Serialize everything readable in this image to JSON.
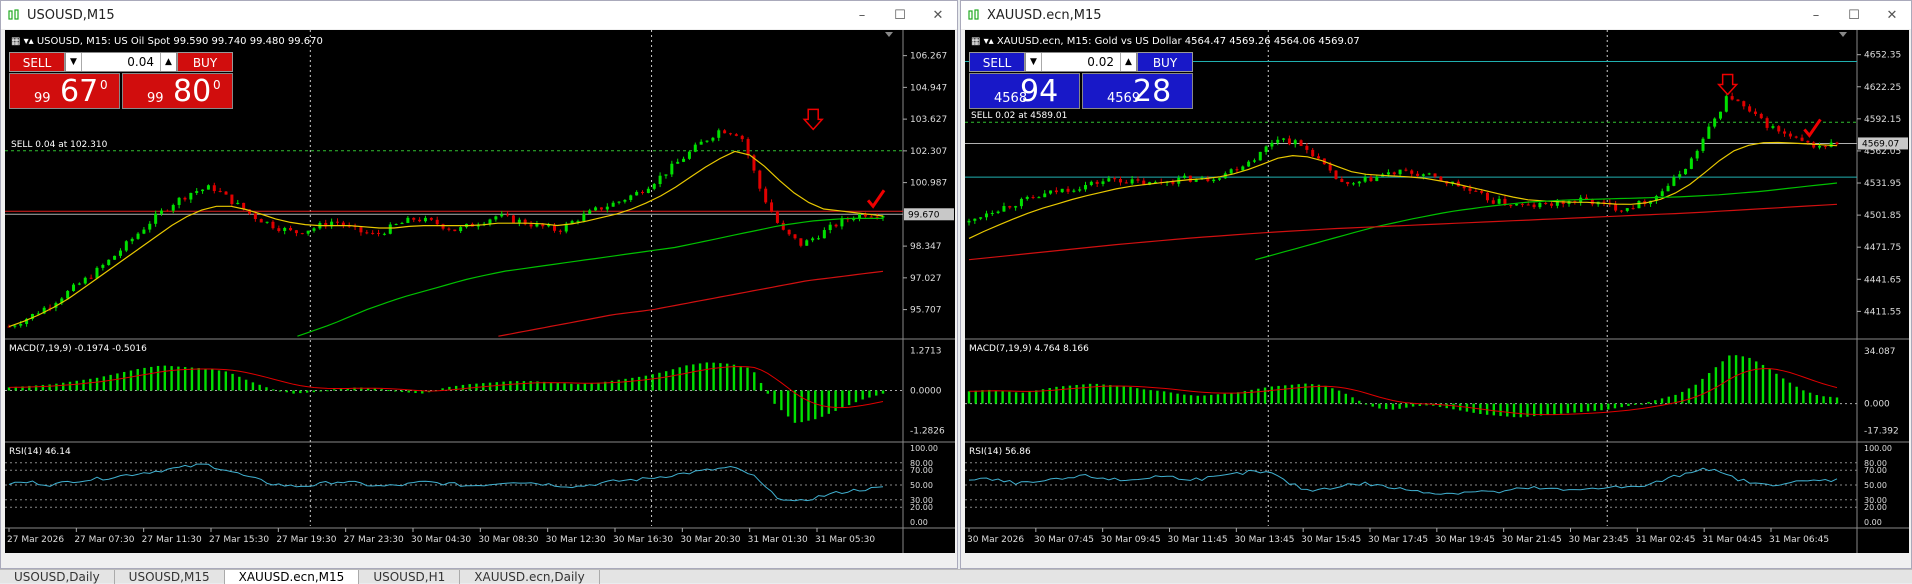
{
  "windows": [
    {
      "id": "left",
      "title": "USOUSD,M15",
      "info": "USOUSD, M15:  US Oil Spot  99.590 99.740 99.480 99.670",
      "trade": {
        "sell_label": "SELL",
        "buy_label": "BUY",
        "lot": "0.04",
        "sell_small": "99",
        "sell_big": "67",
        "sell_sup": "0",
        "buy_small": "99",
        "buy_big": "80",
        "buy_sup": "0",
        "color": "#d10d0d"
      },
      "chart_data": {
        "type": "candlestick",
        "symbol": "USOUSD",
        "price_axis": [
          "106.267",
          "104.947",
          "103.627",
          "102.307",
          "100.987",
          "98.347",
          "97.027",
          "95.707"
        ],
        "ylim": [
          94.9,
          107.0
        ],
        "current_price": "99.670",
        "order_line": {
          "label": "SELL 0.04 at 102.310",
          "price": 102.31
        },
        "time_axis": [
          "27 Mar 2026",
          "27 Mar 07:30",
          "27 Mar 11:30",
          "27 Mar 15:30",
          "27 Mar 19:30",
          "27 Mar 23:30",
          "30 Mar 04:30",
          "30 Mar 08:30",
          "30 Mar 12:30",
          "30 Mar 16:30",
          "30 Mar 20:30",
          "31 Mar 01:30",
          "31 Mar 05:30"
        ],
        "close_path": [
          95.0,
          95.4,
          95.9,
          96.5,
          97.1,
          97.8,
          98.6,
          99.4,
          100.1,
          100.6,
          100.8,
          100.2,
          99.6,
          99.2,
          98.9,
          99.1,
          99.4,
          99.0,
          98.8,
          99.2,
          99.5,
          99.3,
          99.0,
          99.3,
          99.6,
          99.4,
          99.2,
          99.0,
          99.5,
          99.9,
          100.2,
          100.6,
          101.2,
          101.9,
          102.6,
          103.2,
          103.0,
          100.6,
          99.0,
          98.4,
          98.9,
          99.4,
          99.7,
          99.67
        ],
        "ma_fast": [
          95.0,
          95.3,
          95.7,
          96.2,
          96.8,
          97.4,
          98.0,
          98.6,
          99.2,
          99.7,
          100.0,
          100.0,
          99.8,
          99.5,
          99.3,
          99.2,
          99.2,
          99.2,
          99.1,
          99.1,
          99.2,
          99.2,
          99.2,
          99.2,
          99.3,
          99.3,
          99.3,
          99.2,
          99.3,
          99.5,
          99.7,
          100.0,
          100.4,
          100.9,
          101.5,
          102.0,
          102.4,
          101.8,
          101.0,
          100.3,
          99.9,
          99.8,
          99.7,
          99.6
        ],
        "ma_mid": [
          94.6,
          95.1,
          95.7,
          96.2,
          96.6,
          97.0,
          97.3,
          97.5,
          97.7,
          97.9,
          98.1,
          98.3,
          98.6,
          98.9,
          99.2,
          99.4,
          99.5,
          99.5
        ],
        "ma_slow": [
          94.6,
          94.9,
          95.2,
          95.5,
          95.7,
          96.0,
          96.3,
          96.6,
          96.9,
          97.1,
          97.3
        ],
        "arrow_down_x": 0.9,
        "check_x": 0.97,
        "macd": {
          "label": "MACD(7,19,9) -0.1974 -0.5016",
          "axis": [
            "1.2713",
            "0.0000",
            "-1.2826"
          ],
          "ylim": [
            -1.45,
            1.45
          ],
          "hist": [
            0.1,
            0.15,
            0.2,
            0.3,
            0.4,
            0.55,
            0.7,
            0.8,
            0.75,
            0.7,
            0.6,
            0.3,
            0.05,
            -0.1,
            -0.05,
            0.05,
            0.1,
            0.05,
            -0.05,
            -0.1,
            0.1,
            0.2,
            0.25,
            0.3,
            0.3,
            0.25,
            0.2,
            0.25,
            0.35,
            0.45,
            0.6,
            0.8,
            0.9,
            0.85,
            0.7,
            -0.4,
            -1.05,
            -0.9,
            -0.6,
            -0.3,
            -0.1
          ]
        },
        "rsi": {
          "label": "RSI(14) 46.14",
          "axis": [
            "100.00",
            "80.00",
            "70.00",
            "50.00",
            "30.00",
            "20.00",
            "0.00"
          ],
          "values": [
            52,
            54,
            50,
            56,
            58,
            62,
            66,
            70,
            74,
            78,
            70,
            60,
            52,
            48,
            50,
            55,
            52,
            48,
            50,
            54,
            52,
            49,
            51,
            55,
            53,
            50,
            48,
            52,
            56,
            58,
            62,
            66,
            70,
            74,
            64,
            36,
            26,
            34,
            40,
            44,
            46
          ]
        }
      }
    },
    {
      "id": "right",
      "title": "XAUUSD.ecn,M15",
      "info": "XAUUSD.ecn, M15:  Gold vs US Dollar  4564.47 4569.26 4564.06 4569.07",
      "trade": {
        "sell_label": "SELL",
        "buy_label": "BUY",
        "lot": "0.02",
        "sell_small": "4568",
        "sell_big": "94",
        "sell_sup": "",
        "buy_small": "4569",
        "buy_big": "28",
        "buy_sup": "",
        "color": "#1818c8"
      },
      "chart_data": {
        "type": "candlestick",
        "symbol": "XAUUSD.ecn",
        "price_axis": [
          "4652.35",
          "4622.25",
          "4592.15",
          "4562.05",
          "4531.95",
          "4501.85",
          "4471.75",
          "4441.65",
          "4411.55"
        ],
        "ylim": [
          4395,
          4668
        ],
        "current_price": "4569.07",
        "order_line": {
          "label": "SELL 0.02 at 4589.01",
          "price": 4589.01
        },
        "hlines": [
          4646.0,
          4537.5
        ],
        "time_axis": [
          "30 Mar 2026",
          "30 Mar 07:45",
          "30 Mar 09:45",
          "30 Mar 11:45",
          "30 Mar 13:45",
          "30 Mar 15:45",
          "30 Mar 17:45",
          "30 Mar 19:45",
          "30 Mar 21:45",
          "30 Mar 23:45",
          "31 Mar 02:45",
          "31 Mar 04:45",
          "31 Mar 06:45"
        ],
        "close_path": [
          4495,
          4505,
          4510,
          4515,
          4520,
          4525,
          4528,
          4532,
          4536,
          4533,
          4531,
          4534,
          4536,
          4535,
          4540,
          4548,
          4558,
          4575,
          4570,
          4560,
          4540,
          4528,
          4535,
          4540,
          4542,
          4540,
          4535,
          4530,
          4522,
          4515,
          4512,
          4510,
          4512,
          4514,
          4516,
          4512,
          4508,
          4512,
          4520,
          4535,
          4555,
          4585,
          4615,
          4600,
          4588,
          4578,
          4570,
          4566,
          4569
        ],
        "ma_fast": [
          4480,
          4488,
          4495,
          4502,
          4508,
          4513,
          4518,
          4522,
          4526,
          4529,
          4531,
          4533,
          4535,
          4536,
          4538,
          4542,
          4548,
          4555,
          4558,
          4556,
          4550,
          4543,
          4540,
          4539,
          4538,
          4537,
          4534,
          4531,
          4527,
          4523,
          4519,
          4516,
          4515,
          4514,
          4514,
          4513,
          4512,
          4512,
          4515,
          4522,
          4532,
          4546,
          4560,
          4567,
          4570,
          4570,
          4569,
          4568,
          4567
        ],
        "ma_mid": [
          4460,
          4470,
          4480,
          4490,
          4498,
          4505,
          4510,
          4514,
          4516,
          4517,
          4518,
          4519,
          4521,
          4524,
          4528,
          4532
        ],
        "ma_slow": [
          4460,
          4467,
          4474,
          4480,
          4485,
          4489,
          4492,
          4495,
          4498,
          4501,
          4504,
          4508,
          4512
        ],
        "arrow_down_x": 0.855,
        "check_x": 0.95,
        "macd": {
          "label": "MACD(7,19,9) 4.764 8.166",
          "axis": [
            "34.087",
            "0.000",
            "-17.392"
          ],
          "ylim": [
            -21,
            38
          ],
          "hist": [
            8,
            9,
            8,
            7,
            9,
            11,
            12,
            13,
            12,
            11,
            9,
            8,
            6,
            5,
            6,
            7,
            9,
            11,
            12,
            13,
            12,
            8,
            2,
            -3,
            -4,
            -2,
            -1,
            -3,
            -5,
            -7,
            -8,
            -9,
            -8,
            -7,
            -6,
            -5,
            -4,
            -2,
            0,
            3,
            6,
            12,
            22,
            32,
            30,
            24,
            16,
            9,
            5,
            4
          ]
        },
        "rsi": {
          "label": "RSI(14) 56.86",
          "axis": [
            "100.00",
            "80.00",
            "70.00",
            "50.00",
            "30.00",
            "20.00",
            "0.00"
          ],
          "values": [
            56,
            58,
            54,
            52,
            55,
            58,
            62,
            60,
            56,
            58,
            62,
            60,
            58,
            60,
            64,
            68,
            66,
            52,
            42,
            46,
            50,
            52,
            48,
            44,
            42,
            38,
            40,
            42,
            40,
            44,
            46,
            44,
            42,
            46,
            48,
            46,
            50,
            58,
            66,
            74,
            64,
            56,
            50,
            52,
            54,
            56,
            57
          ]
        }
      }
    }
  ],
  "tabs": [
    "USOUSD,Daily",
    "USOUSD,M15",
    "XAUUSD.ecn,M15",
    "USOUSD,H1",
    "XAUUSD.ecn,Daily"
  ],
  "active_tab": 2,
  "colors": {
    "up": "#00e000",
    "down": "#e00000",
    "ma_fast": "#e8c800",
    "ma_mid": "#00c000",
    "ma_slow": "#d01010",
    "macd_signal": "#e00000",
    "rsi": "#40b0d0"
  }
}
